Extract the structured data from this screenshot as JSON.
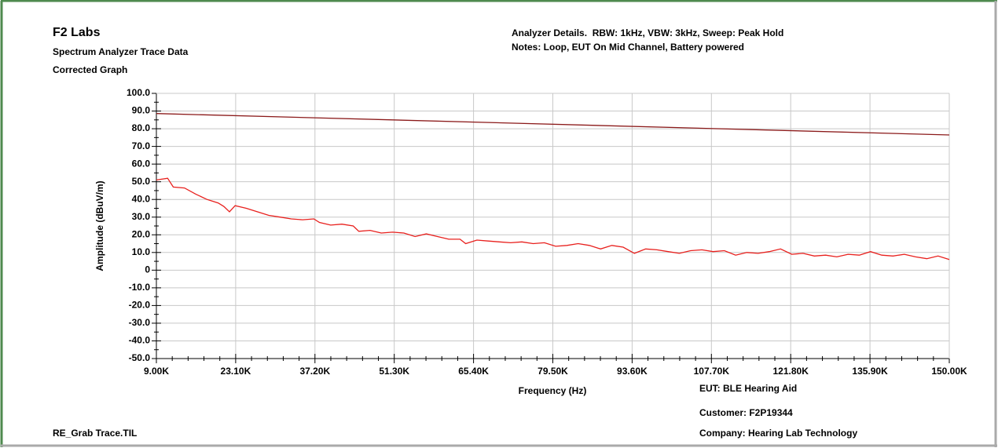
{
  "chart_data": {
    "type": "line",
    "title": "F2 Labs",
    "subtitle": [
      "Spectrum Analyzer Trace Data",
      "Corrected Graph"
    ],
    "notes": [
      "Analyzer Details.  RBW: 1kHz, VBW: 3kHz, Sweep: Peak Hold",
      "Notes: Loop, EUT On Mid Channel, Battery powered"
    ],
    "footer_left": "RE_Grab Trace.TIL",
    "footer_right": [
      "EUT: BLE Hearing Aid",
      "Customer: F2P19344",
      "Company: Hearing Lab Technology"
    ],
    "xlabel": "Frequency (Hz)",
    "ylabel": "Amplitude (dBuV/m)",
    "xlim": [
      9000,
      150000
    ],
    "ylim": [
      -50,
      100
    ],
    "xticks": [
      {
        "value": 9000,
        "label": "9.00K"
      },
      {
        "value": 23100,
        "label": "23.10K"
      },
      {
        "value": 37200,
        "label": "37.20K"
      },
      {
        "value": 51300,
        "label": "51.30K"
      },
      {
        "value": 65400,
        "label": "65.40K"
      },
      {
        "value": 79500,
        "label": "79.50K"
      },
      {
        "value": 93600,
        "label": "93.60K"
      },
      {
        "value": 107700,
        "label": "107.70K"
      },
      {
        "value": 121800,
        "label": "121.80K"
      },
      {
        "value": 135900,
        "label": "135.90K"
      },
      {
        "value": 150000,
        "label": "150.00K"
      }
    ],
    "yticks": [
      {
        "value": 100,
        "label": "100.0"
      },
      {
        "value": 90,
        "label": "90.0"
      },
      {
        "value": 80,
        "label": "80.0"
      },
      {
        "value": 70,
        "label": "70.0"
      },
      {
        "value": 60,
        "label": "60.0"
      },
      {
        "value": 50,
        "label": "50.0"
      },
      {
        "value": 40,
        "label": "40.0"
      },
      {
        "value": 30,
        "label": "30.0"
      },
      {
        "value": 20,
        "label": "20.0"
      },
      {
        "value": 10,
        "label": "10.0"
      },
      0,
      {
        "value": -10,
        "label": "-10.0"
      },
      {
        "value": -20,
        "label": "-20.0"
      },
      {
        "value": -30,
        "label": "-30.0"
      },
      {
        "value": -40,
        "label": "-40.0"
      },
      {
        "value": -50,
        "label": "-50.0"
      }
    ],
    "grid": true,
    "series": [
      {
        "color": "#8b1a1a",
        "x": [
          9000,
          150000
        ],
        "values": [
          88.6,
          76.5
        ]
      },
      {
        "color": "#e8201d",
        "x": [
          9000,
          11000,
          12000,
          14000,
          16000,
          18000,
          20000,
          21000,
          22000,
          23000,
          25000,
          27000,
          29000,
          31000,
          33000,
          35000,
          37000,
          38000,
          40000,
          42000,
          44000,
          45000,
          47000,
          49000,
          51000,
          53000,
          55000,
          57000,
          59000,
          61000,
          63000,
          64000,
          66000,
          68000,
          70000,
          72000,
          74000,
          76000,
          78000,
          80000,
          82000,
          84000,
          86000,
          88000,
          90000,
          92000,
          94000,
          96000,
          98000,
          100000,
          102000,
          104000,
          106000,
          108000,
          110000,
          112000,
          114000,
          116000,
          118000,
          120000,
          122000,
          124000,
          126000,
          128000,
          130000,
          132000,
          134000,
          136000,
          138000,
          140000,
          142000,
          144000,
          146000,
          148000,
          150000
        ],
        "values": [
          51,
          52,
          47,
          46.5,
          43,
          40,
          38,
          36,
          33,
          36.5,
          35,
          33,
          31,
          30,
          29,
          28.5,
          29,
          27,
          25.5,
          26,
          25,
          22,
          22.5,
          21,
          21.5,
          21,
          19,
          20.5,
          19,
          17.5,
          17.5,
          15,
          17,
          16.5,
          16,
          15.5,
          16,
          15,
          15.5,
          13.5,
          14,
          15,
          14,
          12,
          14,
          13,
          9.5,
          12,
          11.5,
          10.5,
          9.5,
          11,
          11.5,
          10.5,
          11,
          8.5,
          10,
          9.5,
          10.5,
          12,
          9,
          9.5,
          8,
          8.5,
          7.5,
          9,
          8.5,
          10.5,
          8.5,
          8,
          9,
          7.5,
          6.5,
          8,
          6
        ]
      }
    ]
  }
}
